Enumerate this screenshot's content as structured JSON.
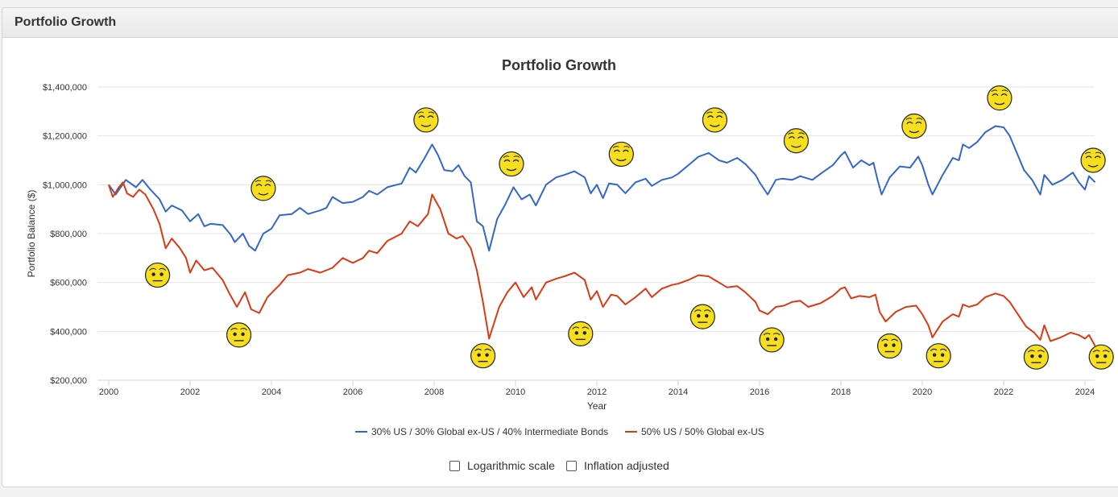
{
  "panel": {
    "title": "Portfolio Growth"
  },
  "chart_data": {
    "type": "line",
    "title": "Portfolio Growth",
    "xlabel": "Year",
    "ylabel": "Portfolio Balance ($)",
    "xlim": [
      2000,
      2024.25
    ],
    "ylim": [
      200000,
      1400000
    ],
    "x_ticks": [
      2000,
      2002,
      2004,
      2006,
      2008,
      2010,
      2012,
      2014,
      2016,
      2018,
      2020,
      2022,
      2024
    ],
    "y_ticks": [
      200000,
      400000,
      600000,
      800000,
      1000000,
      1200000,
      1400000
    ],
    "y_tick_labels": [
      "$200,000",
      "$400,000",
      "$600,000",
      "$800,000",
      "$1,000,000",
      "$1,200,000",
      "$1,400,000"
    ],
    "grid": true,
    "legend_position": "bottom",
    "series": [
      {
        "name": "30% US / 30% Global ex-US / 40% Intermediate Bonds",
        "color": "#3366cc",
        "points": [
          [
            2000,
            1000000
          ],
          [
            2000.17,
            960000
          ],
          [
            2000.42,
            1020000
          ],
          [
            2000.67,
            990000
          ],
          [
            2000.83,
            1020000
          ],
          [
            2001.0,
            985000
          ],
          [
            2001.25,
            940000
          ],
          [
            2001.4,
            890000
          ],
          [
            2001.55,
            915000
          ],
          [
            2001.8,
            895000
          ],
          [
            2002.0,
            850000
          ],
          [
            2002.2,
            880000
          ],
          [
            2002.35,
            830000
          ],
          [
            2002.5,
            840000
          ],
          [
            2002.8,
            835000
          ],
          [
            2003.0,
            795000
          ],
          [
            2003.1,
            765000
          ],
          [
            2003.3,
            800000
          ],
          [
            2003.45,
            750000
          ],
          [
            2003.6,
            730000
          ],
          [
            2003.8,
            800000
          ],
          [
            2004.0,
            820000
          ],
          [
            2004.2,
            875000
          ],
          [
            2004.5,
            880000
          ],
          [
            2004.7,
            905000
          ],
          [
            2004.9,
            880000
          ],
          [
            2005.2,
            895000
          ],
          [
            2005.35,
            905000
          ],
          [
            2005.5,
            950000
          ],
          [
            2005.75,
            925000
          ],
          [
            2006.0,
            930000
          ],
          [
            2006.25,
            950000
          ],
          [
            2006.4,
            975000
          ],
          [
            2006.6,
            960000
          ],
          [
            2006.85,
            990000
          ],
          [
            2007.2,
            1005000
          ],
          [
            2007.4,
            1070000
          ],
          [
            2007.55,
            1050000
          ],
          [
            2007.75,
            1105000
          ],
          [
            2007.95,
            1165000
          ],
          [
            2008.1,
            1120000
          ],
          [
            2008.25,
            1060000
          ],
          [
            2008.45,
            1055000
          ],
          [
            2008.6,
            1080000
          ],
          [
            2008.75,
            1035000
          ],
          [
            2008.9,
            1010000
          ],
          [
            2009.05,
            850000
          ],
          [
            2009.2,
            830000
          ],
          [
            2009.35,
            730000
          ],
          [
            2009.55,
            860000
          ],
          [
            2009.75,
            920000
          ],
          [
            2009.95,
            990000
          ],
          [
            2010.15,
            940000
          ],
          [
            2010.35,
            960000
          ],
          [
            2010.5,
            915000
          ],
          [
            2010.75,
            1000000
          ],
          [
            2011.0,
            1030000
          ],
          [
            2011.2,
            1040000
          ],
          [
            2011.45,
            1055000
          ],
          [
            2011.7,
            1030000
          ],
          [
            2011.85,
            965000
          ],
          [
            2012.0,
            1000000
          ],
          [
            2012.15,
            945000
          ],
          [
            2012.3,
            1005000
          ],
          [
            2012.5,
            1000000
          ],
          [
            2012.7,
            965000
          ],
          [
            2012.95,
            1010000
          ],
          [
            2013.2,
            1025000
          ],
          [
            2013.35,
            995000
          ],
          [
            2013.6,
            1020000
          ],
          [
            2013.85,
            1030000
          ],
          [
            2014.0,
            1045000
          ],
          [
            2014.25,
            1080000
          ],
          [
            2014.5,
            1115000
          ],
          [
            2014.75,
            1130000
          ],
          [
            2015.0,
            1100000
          ],
          [
            2015.2,
            1090000
          ],
          [
            2015.45,
            1110000
          ],
          [
            2015.65,
            1085000
          ],
          [
            2015.9,
            1040000
          ],
          [
            2016.0,
            1010000
          ],
          [
            2016.2,
            960000
          ],
          [
            2016.4,
            1020000
          ],
          [
            2016.55,
            1025000
          ],
          [
            2016.8,
            1020000
          ],
          [
            2017.0,
            1035000
          ],
          [
            2017.3,
            1020000
          ],
          [
            2017.5,
            1045000
          ],
          [
            2017.8,
            1080000
          ],
          [
            2018.0,
            1120000
          ],
          [
            2018.1,
            1135000
          ],
          [
            2018.3,
            1070000
          ],
          [
            2018.5,
            1100000
          ],
          [
            2018.7,
            1080000
          ],
          [
            2018.8,
            1090000
          ],
          [
            2018.9,
            1020000
          ],
          [
            2019.0,
            960000
          ],
          [
            2019.2,
            1030000
          ],
          [
            2019.45,
            1075000
          ],
          [
            2019.7,
            1070000
          ],
          [
            2019.9,
            1115000
          ],
          [
            2020.0,
            1080000
          ],
          [
            2020.15,
            1000000
          ],
          [
            2020.25,
            960000
          ],
          [
            2020.5,
            1040000
          ],
          [
            2020.75,
            1110000
          ],
          [
            2020.9,
            1100000
          ],
          [
            2021.0,
            1165000
          ],
          [
            2021.15,
            1150000
          ],
          [
            2021.35,
            1175000
          ],
          [
            2021.55,
            1215000
          ],
          [
            2021.8,
            1240000
          ],
          [
            2022.0,
            1235000
          ],
          [
            2022.15,
            1200000
          ],
          [
            2022.35,
            1120000
          ],
          [
            2022.5,
            1060000
          ],
          [
            2022.7,
            1020000
          ],
          [
            2022.9,
            960000
          ],
          [
            2023.0,
            1040000
          ],
          [
            2023.2,
            1000000
          ],
          [
            2023.45,
            1020000
          ],
          [
            2023.7,
            1050000
          ],
          [
            2023.85,
            1010000
          ],
          [
            2024.0,
            980000
          ],
          [
            2024.1,
            1035000
          ],
          [
            2024.25,
            1010000
          ]
        ]
      },
      {
        "name": "50% US / 50% Global ex-US",
        "color": "#dc3912",
        "points": [
          [
            2000,
            1000000
          ],
          [
            2000.1,
            950000
          ],
          [
            2000.25,
            990000
          ],
          [
            2000.35,
            1010000
          ],
          [
            2000.45,
            965000
          ],
          [
            2000.6,
            950000
          ],
          [
            2000.75,
            980000
          ],
          [
            2000.9,
            960000
          ],
          [
            2001.1,
            900000
          ],
          [
            2001.25,
            840000
          ],
          [
            2001.4,
            740000
          ],
          [
            2001.55,
            780000
          ],
          [
            2001.75,
            740000
          ],
          [
            2001.9,
            700000
          ],
          [
            2002.0,
            640000
          ],
          [
            2002.15,
            690000
          ],
          [
            2002.35,
            650000
          ],
          [
            2002.55,
            660000
          ],
          [
            2002.8,
            610000
          ],
          [
            2002.95,
            560000
          ],
          [
            2003.15,
            500000
          ],
          [
            2003.35,
            560000
          ],
          [
            2003.5,
            490000
          ],
          [
            2003.7,
            475000
          ],
          [
            2003.9,
            540000
          ],
          [
            2004.2,
            590000
          ],
          [
            2004.4,
            630000
          ],
          [
            2004.7,
            640000
          ],
          [
            2004.9,
            655000
          ],
          [
            2005.2,
            640000
          ],
          [
            2005.5,
            660000
          ],
          [
            2005.75,
            700000
          ],
          [
            2006.0,
            680000
          ],
          [
            2006.25,
            700000
          ],
          [
            2006.4,
            730000
          ],
          [
            2006.6,
            720000
          ],
          [
            2006.85,
            770000
          ],
          [
            2007.2,
            800000
          ],
          [
            2007.4,
            850000
          ],
          [
            2007.6,
            830000
          ],
          [
            2007.85,
            880000
          ],
          [
            2007.95,
            960000
          ],
          [
            2008.15,
            900000
          ],
          [
            2008.35,
            800000
          ],
          [
            2008.55,
            780000
          ],
          [
            2008.7,
            790000
          ],
          [
            2008.9,
            740000
          ],
          [
            2009.05,
            650000
          ],
          [
            2009.2,
            520000
          ],
          [
            2009.35,
            370000
          ],
          [
            2009.6,
            500000
          ],
          [
            2009.8,
            560000
          ],
          [
            2010.0,
            600000
          ],
          [
            2010.2,
            540000
          ],
          [
            2010.4,
            580000
          ],
          [
            2010.5,
            530000
          ],
          [
            2010.75,
            600000
          ],
          [
            2011.0,
            615000
          ],
          [
            2011.2,
            625000
          ],
          [
            2011.45,
            640000
          ],
          [
            2011.7,
            610000
          ],
          [
            2011.85,
            530000
          ],
          [
            2012.0,
            565000
          ],
          [
            2012.15,
            500000
          ],
          [
            2012.35,
            550000
          ],
          [
            2012.5,
            545000
          ],
          [
            2012.7,
            510000
          ],
          [
            2012.95,
            540000
          ],
          [
            2013.2,
            575000
          ],
          [
            2013.35,
            540000
          ],
          [
            2013.6,
            575000
          ],
          [
            2013.85,
            590000
          ],
          [
            2014.0,
            595000
          ],
          [
            2014.25,
            610000
          ],
          [
            2014.5,
            630000
          ],
          [
            2014.75,
            625000
          ],
          [
            2015.0,
            600000
          ],
          [
            2015.2,
            580000
          ],
          [
            2015.45,
            585000
          ],
          [
            2015.65,
            560000
          ],
          [
            2015.9,
            520000
          ],
          [
            2016.0,
            485000
          ],
          [
            2016.2,
            470000
          ],
          [
            2016.4,
            500000
          ],
          [
            2016.6,
            505000
          ],
          [
            2016.8,
            520000
          ],
          [
            2017.0,
            525000
          ],
          [
            2017.2,
            500000
          ],
          [
            2017.5,
            515000
          ],
          [
            2017.8,
            545000
          ],
          [
            2018.0,
            575000
          ],
          [
            2018.1,
            580000
          ],
          [
            2018.25,
            535000
          ],
          [
            2018.45,
            545000
          ],
          [
            2018.7,
            540000
          ],
          [
            2018.85,
            550000
          ],
          [
            2018.95,
            480000
          ],
          [
            2019.1,
            440000
          ],
          [
            2019.35,
            480000
          ],
          [
            2019.6,
            500000
          ],
          [
            2019.85,
            505000
          ],
          [
            2020.0,
            470000
          ],
          [
            2020.15,
            425000
          ],
          [
            2020.25,
            375000
          ],
          [
            2020.5,
            440000
          ],
          [
            2020.75,
            470000
          ],
          [
            2020.9,
            460000
          ],
          [
            2021.0,
            510000
          ],
          [
            2021.15,
            500000
          ],
          [
            2021.35,
            510000
          ],
          [
            2021.55,
            540000
          ],
          [
            2021.8,
            555000
          ],
          [
            2022.0,
            545000
          ],
          [
            2022.15,
            520000
          ],
          [
            2022.35,
            470000
          ],
          [
            2022.55,
            420000
          ],
          [
            2022.75,
            395000
          ],
          [
            2022.9,
            365000
          ],
          [
            2023.0,
            425000
          ],
          [
            2023.15,
            360000
          ],
          [
            2023.4,
            375000
          ],
          [
            2023.65,
            395000
          ],
          [
            2023.85,
            385000
          ],
          [
            2024.0,
            370000
          ],
          [
            2024.1,
            385000
          ],
          [
            2024.25,
            340000
          ]
        ]
      }
    ],
    "annotations": [
      {
        "x": 2001.2,
        "y": 630000,
        "mood": "worried"
      },
      {
        "x": 2003.2,
        "y": 385000,
        "mood": "worried"
      },
      {
        "x": 2003.8,
        "y": 985000,
        "mood": "content"
      },
      {
        "x": 2007.8,
        "y": 1265000,
        "mood": "content"
      },
      {
        "x": 2009.2,
        "y": 300000,
        "mood": "worried"
      },
      {
        "x": 2009.9,
        "y": 1085000,
        "mood": "content"
      },
      {
        "x": 2011.6,
        "y": 390000,
        "mood": "worried"
      },
      {
        "x": 2012.6,
        "y": 1125000,
        "mood": "content"
      },
      {
        "x": 2014.6,
        "y": 460000,
        "mood": "worried"
      },
      {
        "x": 2014.9,
        "y": 1265000,
        "mood": "content"
      },
      {
        "x": 2016.3,
        "y": 365000,
        "mood": "worried"
      },
      {
        "x": 2016.9,
        "y": 1180000,
        "mood": "content"
      },
      {
        "x": 2019.2,
        "y": 340000,
        "mood": "worried"
      },
      {
        "x": 2019.8,
        "y": 1240000,
        "mood": "content"
      },
      {
        "x": 2020.4,
        "y": 300000,
        "mood": "worried"
      },
      {
        "x": 2021.9,
        "y": 1355000,
        "mood": "content"
      },
      {
        "x": 2022.8,
        "y": 295000,
        "mood": "worried"
      },
      {
        "x": 2024.2,
        "y": 1100000,
        "mood": "content"
      },
      {
        "x": 2024.4,
        "y": 295000,
        "mood": "worried"
      }
    ]
  },
  "options": {
    "log_label": "Logarithmic scale",
    "inflation_label": "Inflation adjusted"
  }
}
